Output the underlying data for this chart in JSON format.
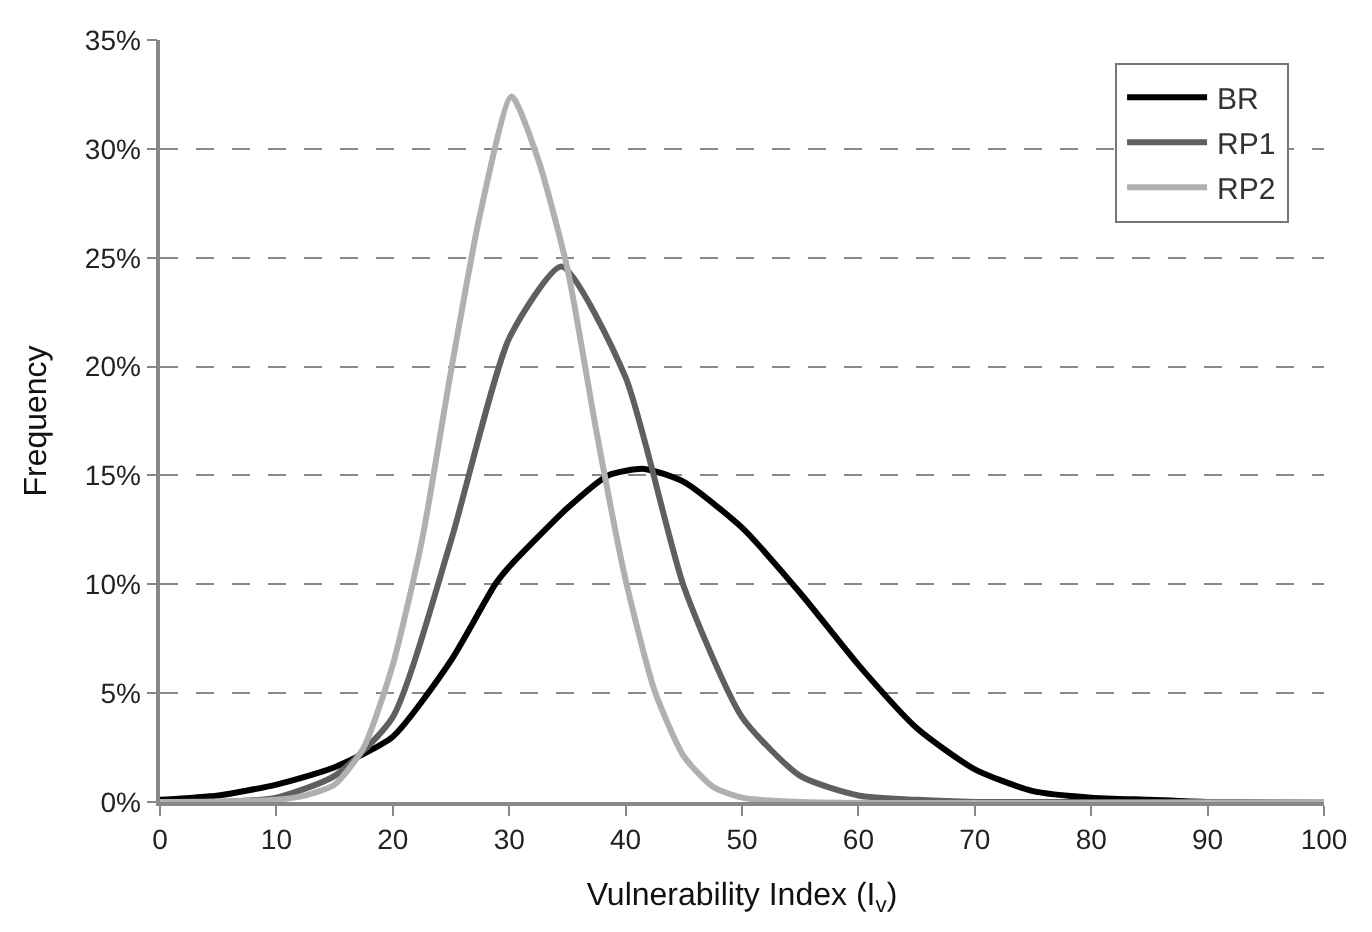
{
  "chart_data": {
    "type": "line",
    "xlabel": "Vulnerability Index (I$_{v}$)",
    "ylabel": "Frequency",
    "xlim": [
      0,
      100
    ],
    "xticks": [
      0,
      10,
      20,
      30,
      40,
      50,
      60,
      70,
      80,
      90,
      100
    ],
    "ylim": [
      0,
      35
    ],
    "yticks": [
      {
        "value": 0,
        "label": "0%"
      },
      {
        "value": 5,
        "label": "5%"
      },
      {
        "value": 10,
        "label": "10%"
      },
      {
        "value": 15,
        "label": "15%"
      },
      {
        "value": 20,
        "label": "20%"
      },
      {
        "value": 25,
        "label": "25%"
      },
      {
        "value": 30,
        "label": "30%"
      },
      {
        "value": 35,
        "label": "35%"
      }
    ],
    "grid": "y",
    "legend": "top right",
    "marker": "none",
    "line_style": "solid",
    "series": [
      {
        "name": "BR",
        "color": "#000000",
        "x": [
          0,
          5,
          10,
          15,
          20,
          25,
          28.8,
          30,
          35,
          38.5,
          41.6,
          45,
          50,
          55,
          60,
          65,
          70,
          75,
          80,
          85,
          90,
          100
        ],
        "values": [
          0.1,
          0.3,
          0.8,
          1.6,
          3.0,
          6.5,
          10.0,
          10.8,
          13.5,
          15.0,
          15.3,
          14.7,
          12.6,
          9.6,
          6.3,
          3.4,
          1.5,
          0.5,
          0.2,
          0.1,
          0,
          0
        ]
      },
      {
        "name": "RP1",
        "color": "#5f5f5f",
        "x": [
          0,
          5,
          10,
          15,
          20,
          25,
          30,
          34.5,
          40,
          45,
          50,
          55,
          60,
          65,
          70,
          100
        ],
        "values": [
          0,
          0,
          0.2,
          1.2,
          3.9,
          12.0,
          21.3,
          24.6,
          19.5,
          9.9,
          3.9,
          1.2,
          0.3,
          0.1,
          0,
          0
        ]
      },
      {
        "name": "RP2",
        "color": "#b0b0b0",
        "x": [
          0,
          10,
          12.5,
          15,
          17.5,
          20,
          22.5,
          25,
          27.5,
          30.2,
          32.5,
          35,
          37.5,
          40,
          42.5,
          45,
          47.5,
          50,
          55,
          100
        ],
        "values": [
          0,
          0.1,
          0.3,
          0.8,
          2.5,
          6.3,
          12.0,
          19.8,
          27.0,
          32.4,
          29.5,
          24.5,
          17.0,
          10.2,
          5.1,
          2.1,
          0.7,
          0.2,
          0,
          0
        ]
      }
    ]
  }
}
